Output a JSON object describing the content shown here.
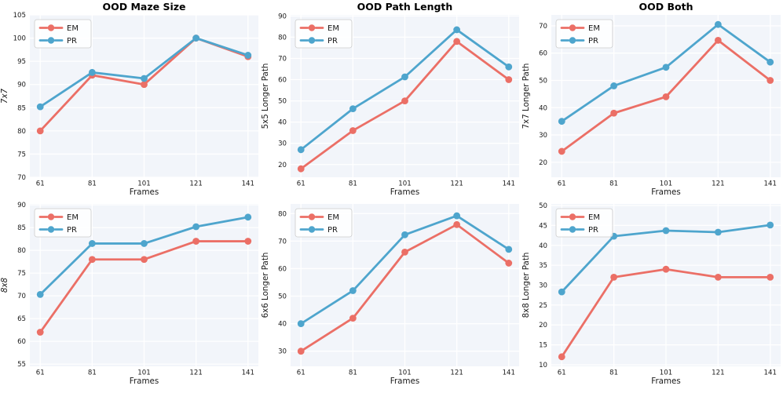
{
  "figure": {
    "background": "#ffffff",
    "plot_background": "#f2f5fa",
    "grid_color": "#ffffff",
    "text_color": "#1a1a1a",
    "title_color": "#000000",
    "legend_border": "#cccccc",
    "legend_background": "#ffffff"
  },
  "legend": {
    "items": [
      {
        "label": "EM",
        "color": "#eb6f66"
      },
      {
        "label": "PR",
        "color": "#4ea5cd"
      }
    ]
  },
  "chart_data": [
    {
      "type": "line",
      "title": "OOD Maze Size",
      "xlabel": "Frames",
      "ylabel": "7x7",
      "ylabel_italic": true,
      "x": [
        61,
        81,
        101,
        121,
        141
      ],
      "xticks": [
        61,
        81,
        101,
        121,
        141
      ],
      "xlim": [
        57,
        145
      ],
      "ylim": [
        70,
        105
      ],
      "yticks": [
        70,
        75,
        80,
        85,
        90,
        95,
        100,
        105
      ],
      "grid": true,
      "legend_position": "upper left",
      "series": [
        {
          "name": "EM",
          "color": "#eb6f66",
          "values": [
            80,
            92,
            90,
            100,
            96
          ]
        },
        {
          "name": "PR",
          "color": "#4ea5cd",
          "values": [
            85.2,
            92.6,
            91.3,
            100,
            96.3
          ]
        }
      ]
    },
    {
      "type": "line",
      "title": "OOD Path Length",
      "xlabel": "Frames",
      "ylabel": "5x5 Longer Path",
      "ylabel_italic": false,
      "x": [
        61,
        81,
        101,
        121,
        141
      ],
      "xticks": [
        61,
        81,
        101,
        121,
        141
      ],
      "xlim": [
        57,
        145
      ],
      "ylim": [
        14,
        90.5
      ],
      "yticks": [
        20,
        30,
        40,
        50,
        60,
        70,
        80,
        90
      ],
      "grid": true,
      "legend_position": "upper left",
      "series": [
        {
          "name": "EM",
          "color": "#eb6f66",
          "values": [
            18,
            36,
            50,
            78,
            60
          ]
        },
        {
          "name": "PR",
          "color": "#4ea5cd",
          "values": [
            27,
            46.3,
            61.3,
            83.5,
            66
          ]
        }
      ]
    },
    {
      "type": "line",
      "title": "OOD Both",
      "xlabel": "Frames",
      "ylabel": "7x7 Longer Path",
      "ylabel_italic": false,
      "x": [
        61,
        81,
        101,
        121,
        141
      ],
      "xticks": [
        61,
        81,
        101,
        121,
        141
      ],
      "xlim": [
        57,
        145
      ],
      "ylim": [
        14.5,
        74
      ],
      "yticks": [
        20,
        30,
        40,
        50,
        60,
        70
      ],
      "grid": true,
      "legend_position": "upper left",
      "series": [
        {
          "name": "EM",
          "color": "#eb6f66",
          "values": [
            24,
            38,
            44,
            64.7,
            50
          ]
        },
        {
          "name": "PR",
          "color": "#4ea5cd",
          "values": [
            35,
            48,
            54.8,
            70.5,
            56.7
          ]
        }
      ]
    },
    {
      "type": "line",
      "title": "",
      "xlabel": "Frames",
      "ylabel": "8x8",
      "ylabel_italic": true,
      "x": [
        61,
        81,
        101,
        121,
        141
      ],
      "xticks": [
        61,
        81,
        101,
        121,
        141
      ],
      "xlim": [
        57,
        145
      ],
      "ylim": [
        54.5,
        90.2
      ],
      "yticks": [
        55,
        60,
        65,
        70,
        75,
        80,
        85,
        90
      ],
      "grid": true,
      "legend_position": "upper left",
      "series": [
        {
          "name": "EM",
          "color": "#eb6f66",
          "values": [
            62,
            78,
            78,
            82,
            82
          ]
        },
        {
          "name": "PR",
          "color": "#4ea5cd",
          "values": [
            70.3,
            81.5,
            81.5,
            85.2,
            87.3
          ]
        }
      ]
    },
    {
      "type": "line",
      "title": "",
      "xlabel": "Frames",
      "ylabel": "6x6 Longer Path",
      "ylabel_italic": false,
      "x": [
        61,
        81,
        101,
        121,
        141
      ],
      "xticks": [
        61,
        81,
        101,
        121,
        141
      ],
      "xlim": [
        57,
        145
      ],
      "ylim": [
        24.5,
        83.5
      ],
      "yticks": [
        30,
        40,
        50,
        60,
        70,
        80
      ],
      "grid": true,
      "legend_position": "upper left",
      "series": [
        {
          "name": "EM",
          "color": "#eb6f66",
          "values": [
            30,
            42,
            66,
            76,
            62
          ]
        },
        {
          "name": "PR",
          "color": "#4ea5cd",
          "values": [
            40,
            52,
            72.3,
            79.2,
            67
          ]
        }
      ]
    },
    {
      "type": "line",
      "title": "",
      "xlabel": "Frames",
      "ylabel": "8x8 Longer Path",
      "ylabel_italic": false,
      "x": [
        61,
        81,
        101,
        121,
        141
      ],
      "xticks": [
        61,
        81,
        101,
        121,
        141
      ],
      "xlim": [
        57,
        145
      ],
      "ylim": [
        9.6,
        50.4
      ],
      "yticks": [
        10,
        15,
        20,
        25,
        30,
        35,
        40,
        45,
        50
      ],
      "grid": true,
      "legend_position": "upper left",
      "series": [
        {
          "name": "EM",
          "color": "#eb6f66",
          "values": [
            12,
            32,
            34,
            32,
            32
          ]
        },
        {
          "name": "PR",
          "color": "#4ea5cd",
          "values": [
            28.3,
            42.3,
            43.7,
            43.3,
            45.1
          ]
        }
      ]
    }
  ]
}
